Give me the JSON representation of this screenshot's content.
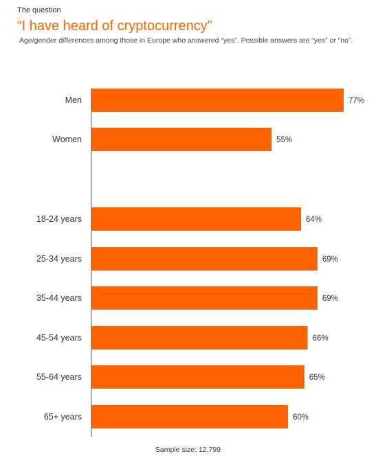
{
  "header": {
    "eyebrow": "The question",
    "title": "“I have heard of cryptocurrency”",
    "subtitle": "Age/gender differences among those in Europe who answered “yes”. Possible answers are “yes” or “no”."
  },
  "footer": {
    "sample_size": "Sample size: 12,799"
  },
  "colors": {
    "bar": "#ff6200",
    "axis": "#555555",
    "text": "#333333"
  },
  "chart_data": {
    "type": "bar",
    "orientation": "horizontal",
    "title": "“I have heard of cryptocurrency”",
    "categories": [
      "Men",
      "Women",
      "18-24 years",
      "25-34 years",
      "35-44 years",
      "45-54 years",
      "55-64 years",
      "65+ years"
    ],
    "values": [
      77,
      55,
      64,
      69,
      69,
      66,
      65,
      60
    ],
    "value_labels": [
      "77%",
      "55%",
      "64%",
      "69%",
      "69%",
      "66%",
      "65%",
      "60%"
    ],
    "unit": "%",
    "groups": [
      [
        "Men",
        "Women"
      ],
      [
        "18-24 years",
        "25-34 years",
        "35-44 years",
        "45-54 years",
        "55-64 years",
        "65+ years"
      ]
    ],
    "xlim": [
      0,
      77
    ],
    "grid": false,
    "legend": "none"
  }
}
